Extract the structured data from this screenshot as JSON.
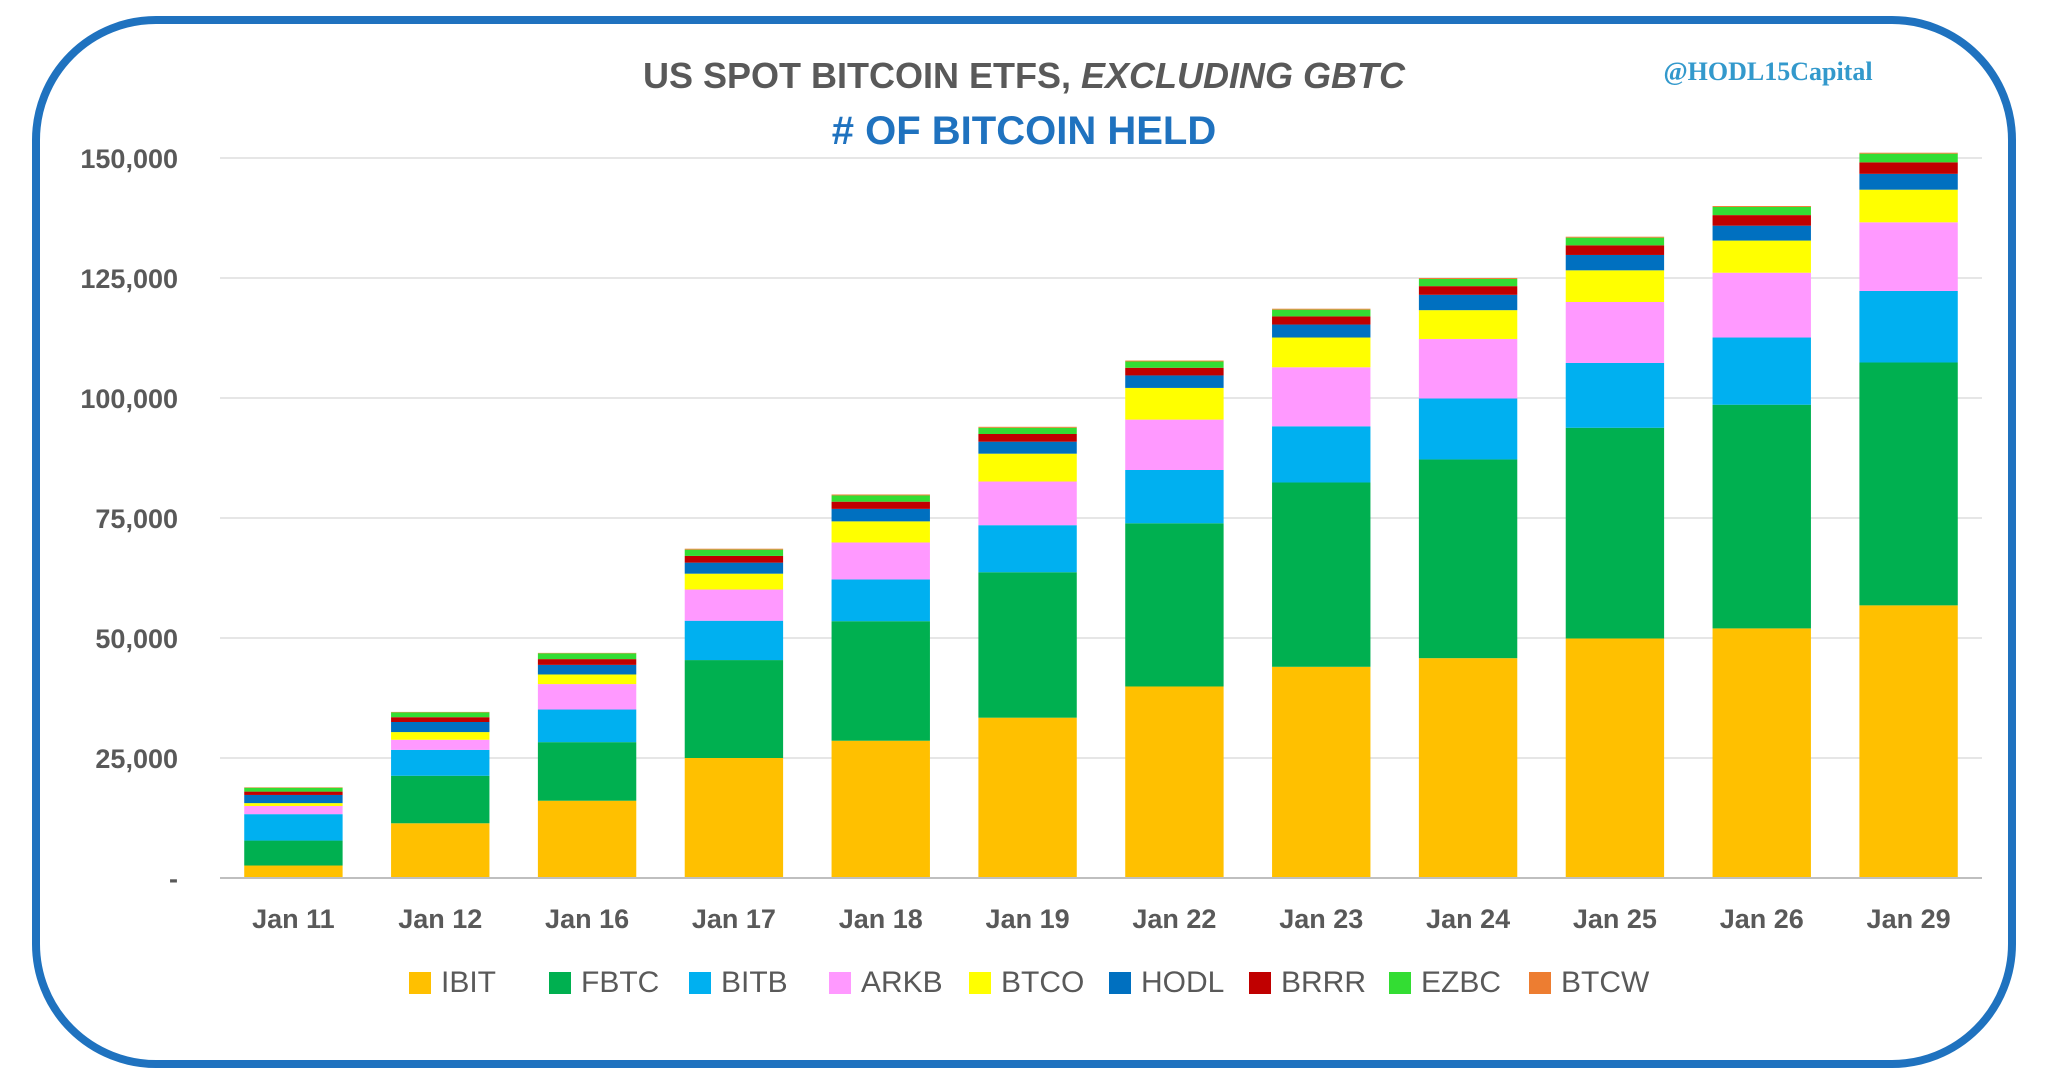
{
  "chart_data": {
    "type": "bar",
    "stacked": true,
    "title": "US SPOT BITCOIN ETFS, ",
    "title_italic": "EXCLUDING GBTC",
    "subtitle": "# OF BITCOIN HELD",
    "watermark": "@HODL15Capital",
    "xlabel": "",
    "ylabel": "",
    "ylim": [
      0,
      150000
    ],
    "yticks": [
      0,
      25000,
      50000,
      75000,
      100000,
      125000,
      150000
    ],
    "ytick_labels": [
      "-",
      "25,000",
      "50,000",
      "75,000",
      "100,000",
      "125,000",
      "150,000"
    ],
    "grid": true,
    "legend_position": "bottom",
    "categories": [
      "Jan 11",
      "Jan 12",
      "Jan 16",
      "Jan 17",
      "Jan 18",
      "Jan 19",
      "Jan 22",
      "Jan 23",
      "Jan 24",
      "Jan 25",
      "Jan 26",
      "Jan 29"
    ],
    "series": [
      {
        "name": "IBIT",
        "color": "#FFC000",
        "values": [
          2600,
          11400,
          16100,
          25000,
          28600,
          33400,
          39900,
          44000,
          45800,
          49900,
          52000,
          56800
        ]
      },
      {
        "name": "FBTC",
        "color": "#00B050",
        "values": [
          5200,
          9900,
          12200,
          20400,
          24900,
          30300,
          34000,
          38400,
          41400,
          43900,
          46600,
          50600
        ]
      },
      {
        "name": "BITB",
        "color": "#00B0F0",
        "values": [
          5500,
          5400,
          6800,
          8200,
          8700,
          9800,
          11100,
          11700,
          12700,
          13500,
          14000,
          14900
        ]
      },
      {
        "name": "ARKB",
        "color": "#FF99FF",
        "values": [
          1700,
          2100,
          5300,
          6500,
          7700,
          9100,
          10500,
          12300,
          12400,
          12700,
          13500,
          14300
        ]
      },
      {
        "name": "BTCO",
        "color": "#FFFF00",
        "values": [
          600,
          1600,
          2000,
          3300,
          4400,
          5800,
          6600,
          6200,
          6000,
          6600,
          6700,
          6800
        ]
      },
      {
        "name": "HODL",
        "color": "#0070C0",
        "values": [
          1700,
          2100,
          2000,
          2300,
          2600,
          2500,
          2600,
          2700,
          3200,
          3200,
          3100,
          3300
        ]
      },
      {
        "name": "BRRR",
        "color": "#C00000",
        "values": [
          700,
          1000,
          1200,
          1400,
          1500,
          1600,
          1600,
          1700,
          1800,
          2000,
          2200,
          2400
        ]
      },
      {
        "name": "EZBC",
        "color": "#33DD33",
        "values": [
          800,
          1000,
          1200,
          1300,
          1300,
          1300,
          1300,
          1400,
          1500,
          1600,
          1700,
          1800
        ]
      },
      {
        "name": "BTCW",
        "color": "#ED7D31",
        "values": [
          100,
          100,
          100,
          200,
          200,
          200,
          200,
          200,
          200,
          200,
          200,
          200
        ]
      }
    ]
  },
  "colors": {
    "frame": "#1F72BF",
    "title": "#595959",
    "subtitle": "#1F72BF",
    "watermark": "#3399CC",
    "gridline": "#E6E6E6",
    "axis": "#BFBFBF",
    "text": "#595959"
  }
}
